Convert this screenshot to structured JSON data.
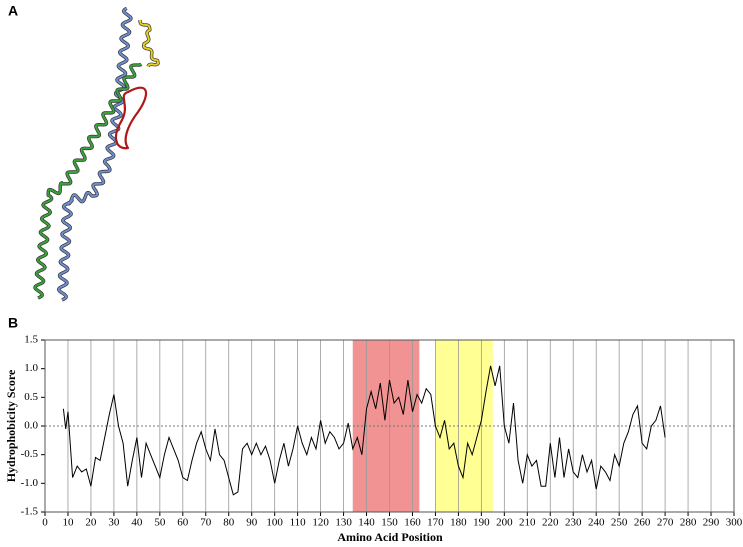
{
  "panel_labels": [
    "A",
    "B"
  ],
  "chart_data": {
    "type": "line",
    "xlabel": "Amino Acid Position",
    "ylabel": "Hydrophobicity Score",
    "x": [
      8,
      9,
      10,
      12,
      14,
      16,
      18,
      20,
      22,
      24,
      26,
      28,
      30,
      32,
      34,
      36,
      38,
      40,
      42,
      44,
      46,
      48,
      50,
      52,
      54,
      56,
      58,
      60,
      62,
      64,
      66,
      68,
      70,
      72,
      74,
      76,
      78,
      80,
      82,
      84,
      86,
      88,
      90,
      92,
      94,
      96,
      98,
      100,
      102,
      104,
      106,
      108,
      110,
      112,
      114,
      116,
      118,
      120,
      122,
      124,
      126,
      128,
      130,
      132,
      134,
      136,
      138,
      140,
      142,
      144,
      146,
      148,
      150,
      152,
      154,
      156,
      158,
      160,
      162,
      164,
      166,
      168,
      170,
      172,
      174,
      176,
      178,
      180,
      182,
      184,
      186,
      188,
      190,
      192,
      194,
      196,
      198,
      200,
      202,
      204,
      206,
      208,
      210,
      212,
      214,
      216,
      218,
      220,
      222,
      224,
      226,
      228,
      230,
      232,
      234,
      236,
      238,
      240,
      242,
      244,
      246,
      248,
      250,
      252,
      254,
      256,
      258,
      260,
      262,
      264,
      266,
      268,
      270
    ],
    "series": [
      {
        "name": "Hydrophobicity",
        "color": "#000000",
        "values": [
          0.3,
          -0.05,
          0.25,
          -0.9,
          -0.7,
          -0.8,
          -0.75,
          -1.05,
          -0.55,
          -0.6,
          -0.2,
          0.2,
          0.55,
          0.0,
          -0.3,
          -1.05,
          -0.6,
          -0.2,
          -0.9,
          -0.3,
          -0.5,
          -0.7,
          -0.9,
          -0.5,
          -0.2,
          -0.4,
          -0.6,
          -0.9,
          -0.95,
          -0.6,
          -0.3,
          -0.1,
          -0.4,
          -0.6,
          -0.05,
          -0.5,
          -0.6,
          -0.9,
          -1.2,
          -1.15,
          -0.4,
          -0.3,
          -0.5,
          -0.3,
          -0.5,
          -0.35,
          -0.6,
          -1.0,
          -0.6,
          -0.3,
          -0.7,
          -0.4,
          0.0,
          -0.3,
          -0.5,
          -0.2,
          -0.4,
          0.1,
          -0.3,
          -0.1,
          -0.2,
          -0.4,
          -0.3,
          0.05,
          -0.4,
          -0.2,
          -0.5,
          0.3,
          0.6,
          0.3,
          0.75,
          0.1,
          0.8,
          0.4,
          0.5,
          0.2,
          0.8,
          0.25,
          0.55,
          0.4,
          0.65,
          0.55,
          0.0,
          -0.2,
          0.1,
          -0.4,
          -0.3,
          -0.7,
          -0.9,
          -0.3,
          -0.5,
          -0.2,
          0.1,
          0.6,
          1.05,
          0.7,
          1.05,
          0.0,
          -0.3,
          0.4,
          -0.6,
          -1.0,
          -0.5,
          -0.7,
          -0.6,
          -1.05,
          -1.05,
          -0.3,
          -0.9,
          -0.2,
          -0.9,
          -0.4,
          -0.8,
          -0.9,
          -0.5,
          -0.8,
          -0.6,
          -1.1,
          -0.7,
          -0.8,
          -0.95,
          -0.5,
          -0.7,
          -0.3,
          -0.1,
          0.2,
          0.35,
          -0.3,
          -0.4,
          0.0,
          0.1,
          0.35,
          -0.2
        ]
      }
    ],
    "highlights": [
      {
        "start": 134,
        "end": 163,
        "color": "#f08080"
      },
      {
        "start": 170,
        "end": 195,
        "color": "#ffff80"
      }
    ],
    "xlim": [
      0,
      300
    ],
    "xticks": [
      0,
      10,
      20,
      30,
      40,
      50,
      60,
      70,
      80,
      90,
      100,
      110,
      120,
      130,
      140,
      150,
      160,
      170,
      180,
      190,
      200,
      210,
      220,
      230,
      240,
      250,
      260,
      270,
      280,
      290,
      300
    ],
    "ylim": [
      -1.5,
      1.5
    ],
    "yticks": [
      -1.5,
      {
        "value": -1,
        "label": "-1.0"
      },
      -0.5,
      {
        "value": 0,
        "label": "0.0"
      },
      0.5,
      {
        "value": 1,
        "label": "1.0"
      },
      1.5
    ],
    "grid": "x"
  }
}
